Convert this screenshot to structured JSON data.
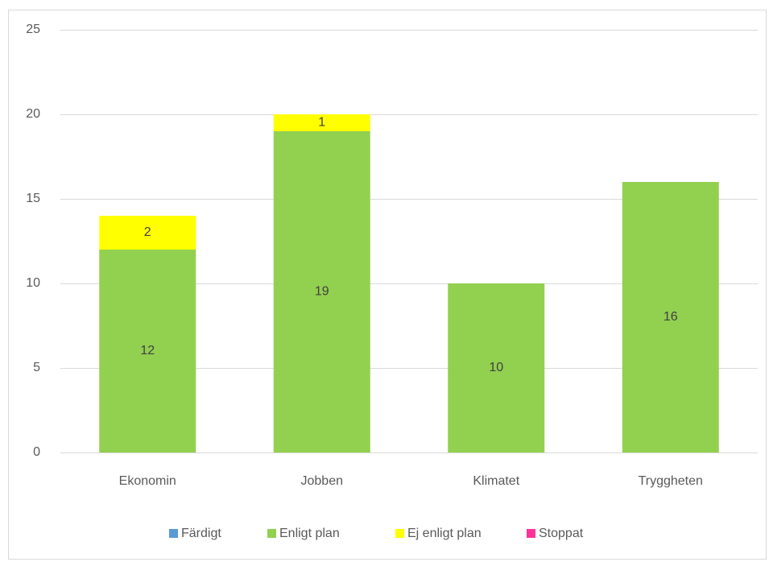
{
  "chart_data": {
    "type": "bar",
    "stacked": true,
    "categories": [
      "Ekonomin",
      "Jobben",
      "Klimatet",
      "Tryggheten"
    ],
    "series": [
      {
        "name": "Färdigt",
        "color": "#5b9bd5",
        "values": [
          0,
          0,
          0,
          0
        ]
      },
      {
        "name": "Enligt plan",
        "color": "#92d050",
        "values": [
          12,
          19,
          10,
          16
        ]
      },
      {
        "name": "Ej enligt plan",
        "color": "#ffff00",
        "values": [
          2,
          1,
          0,
          0
        ]
      },
      {
        "name": "Stoppat",
        "color": "#ff3399",
        "values": [
          0,
          0,
          0,
          0
        ]
      }
    ],
    "ylim": [
      0,
      25
    ],
    "yticks": [
      0,
      5,
      10,
      15,
      20,
      25
    ],
    "grid": true,
    "legend": "bottom"
  }
}
